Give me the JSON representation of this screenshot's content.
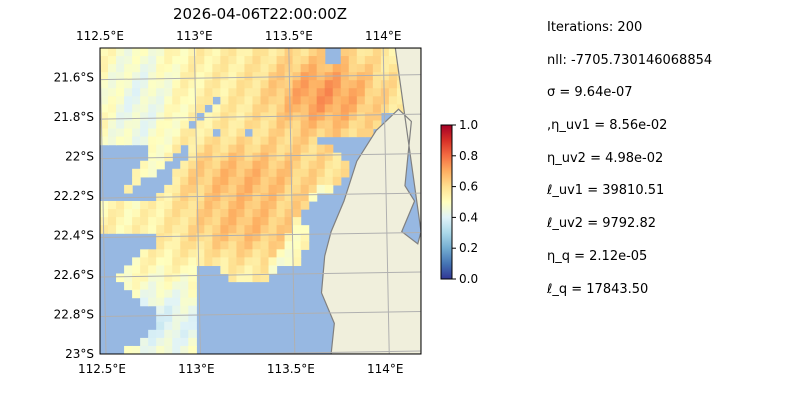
{
  "chart_data": {
    "type": "heatmap",
    "title": "2026-04-06T22:00:00Z",
    "x_ticks": [
      "112.5°E",
      "113°E",
      "113.5°E",
      "114°E"
    ],
    "x_tick_values": [
      112.5,
      113.0,
      113.5,
      114.0
    ],
    "y_ticks": [
      "21.6°S",
      "21.8°S",
      "22°S",
      "22.2°S",
      "22.4°S",
      "22.6°S",
      "22.8°S",
      "23°S"
    ],
    "y_tick_values": [
      -21.6,
      -21.8,
      -22.0,
      -22.2,
      -22.4,
      -22.6,
      -22.8,
      -23.0
    ],
    "xlim": [
      112.5,
      114.2
    ],
    "ylim": [
      -23.0,
      -21.45
    ],
    "grid": true,
    "colorbar": {
      "ticks": [
        "0.0",
        "0.2",
        "0.4",
        "0.6",
        "0.8",
        "1.0"
      ],
      "tick_values": [
        0.0,
        0.2,
        0.4,
        0.6,
        0.8,
        1.0
      ],
      "range": [
        0,
        1
      ],
      "colormap": "RdYlBu_r"
    },
    "colors": {
      "ocean": "#97b8e2",
      "land": "#f0efdc",
      "coast": "#808080"
    },
    "field": {
      "description_lon": [
        112.5,
        112.75,
        113.0,
        113.25,
        113.5,
        113.75,
        114.0
      ],
      "description_lat": [
        -21.5,
        -21.75,
        -22.0,
        -22.25,
        -22.5,
        -22.75,
        -23.0
      ]
    }
  },
  "params": [
    "Iterations: 200",
    "nll: -7705.730146068854",
    "σ = 9.64e-07",
    ",η_uv1 = 8.56e-02",
    "η_uv2 = 4.98e-02",
    "ℓ_uv1 = 39810.51",
    "ℓ_uv2 = 9792.82",
    "η_q = 2.12e-05",
    "ℓ_q = 17843.50"
  ]
}
